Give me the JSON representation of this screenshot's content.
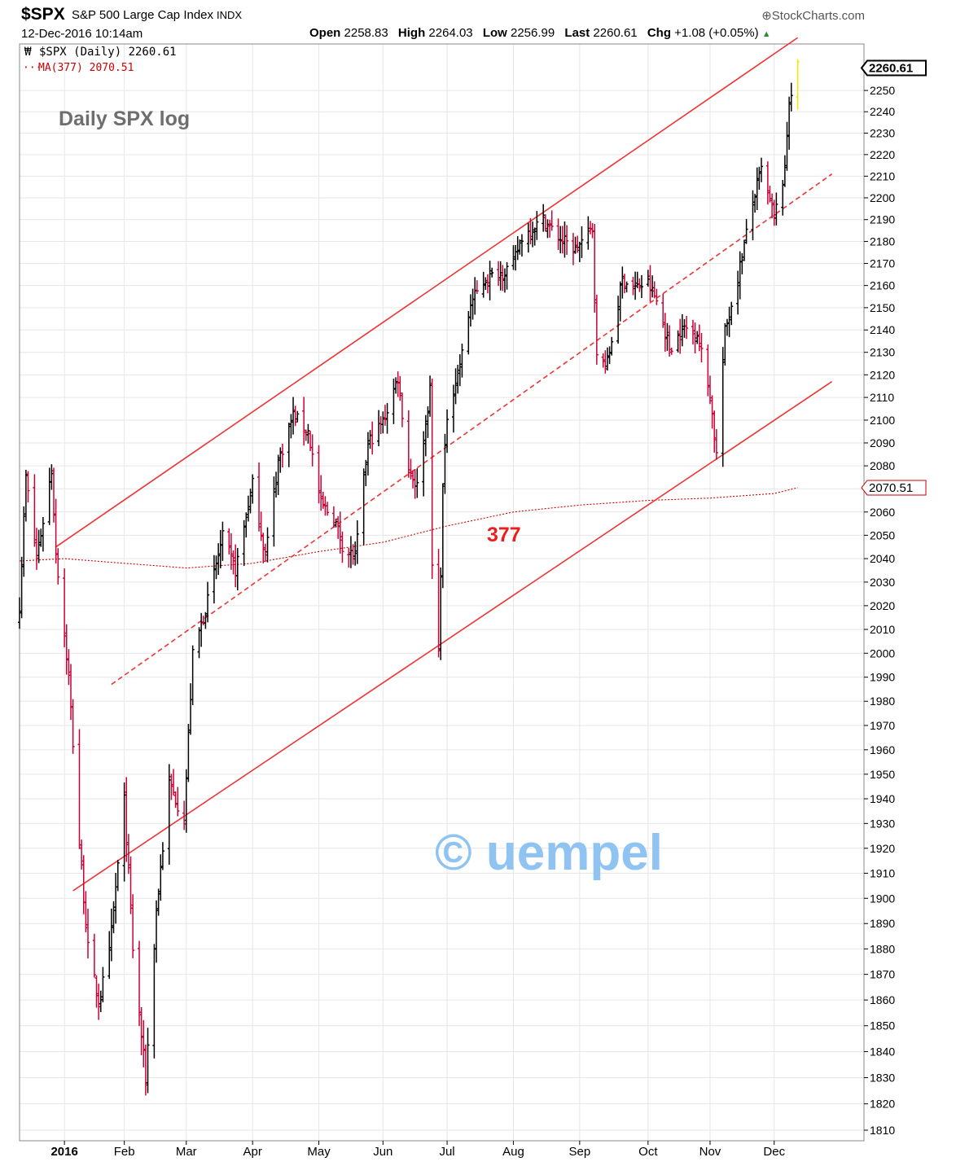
{
  "header": {
    "symbol": "$SPX",
    "name": "S&P 500 Large Cap Index",
    "exchange": "INDX",
    "brand": "StockCharts.com",
    "date": "12-Dec-2016 10:14am",
    "open_label": "Open",
    "open": "2258.83",
    "high_label": "High",
    "high": "2264.03",
    "low_label": "Low",
    "low": "2256.99",
    "last_label": "Last",
    "last": "2260.61",
    "chg_label": "Chg",
    "chg": "+1.08 (+0.05%)"
  },
  "colors": {
    "up": "#000000",
    "down": "#cc0033",
    "trendline": "#ee3333",
    "ma": "#cc0000",
    "watermark": "#8fc4f2",
    "last_bar": "#f2e600"
  },
  "chart_data": {
    "type": "ohlc",
    "title": "Daily SPX log",
    "legend": [
      {
        "label": "$SPX (Daily) 2260.61",
        "color": "#000000"
      },
      {
        "label": "MA(377) 2070.51",
        "color": "#cc0000"
      }
    ],
    "y_scale": "log",
    "ylim": [
      1806,
      2272
    ],
    "y_ticks": [
      1810,
      1820,
      1830,
      1840,
      1850,
      1860,
      1870,
      1880,
      1890,
      1900,
      1910,
      1920,
      1930,
      1940,
      1950,
      1960,
      1970,
      1980,
      1990,
      2000,
      2010,
      2020,
      2030,
      2040,
      2050,
      2060,
      2070,
      2080,
      2090,
      2100,
      2110,
      2120,
      2130,
      2140,
      2150,
      2160,
      2170,
      2180,
      2190,
      2200,
      2210,
      2220,
      2230,
      2240,
      2250
    ],
    "y_tags": [
      "2260.61",
      "2070.51"
    ],
    "x_labels": [
      "2016",
      "Feb",
      "Mar",
      "Apr",
      "May",
      "Jun",
      "Jul",
      "Aug",
      "Sep",
      "Oct",
      "Nov",
      "Dec"
    ],
    "x_label_dates": [
      "2016-01-04",
      "2016-02-01",
      "2016-03-01",
      "2016-04-01",
      "2016-05-02",
      "2016-06-01",
      "2016-07-01",
      "2016-08-01",
      "2016-09-01",
      "2016-10-03",
      "2016-11-01",
      "2016-12-01"
    ],
    "xlim": [
      "2015-12-14",
      "2017-01-12"
    ],
    "close_path": [
      [
        "2015-12-14",
        2020
      ],
      [
        "2015-12-17",
        2075
      ],
      [
        "2015-12-22",
        2040
      ],
      [
        "2015-12-29",
        2078
      ],
      [
        "2015-12-31",
        2043
      ],
      [
        "2016-01-06",
        1990
      ],
      [
        "2016-01-11",
        1922
      ],
      [
        "2016-01-15",
        1880
      ],
      [
        "2016-01-20",
        1859
      ],
      [
        "2016-01-25",
        1878
      ],
      [
        "2016-02-01",
        1939
      ],
      [
        "2016-02-05",
        1880
      ],
      [
        "2016-02-11",
        1829
      ],
      [
        "2016-02-16",
        1895
      ],
      [
        "2016-02-22",
        1946
      ],
      [
        "2016-02-29",
        1932
      ],
      [
        "2016-03-04",
        1999
      ],
      [
        "2016-03-11",
        2022
      ],
      [
        "2016-03-18",
        2049
      ],
      [
        "2016-03-24",
        2035
      ],
      [
        "2016-04-01",
        2072
      ],
      [
        "2016-04-07",
        2041
      ],
      [
        "2016-04-13",
        2082
      ],
      [
        "2016-04-20",
        2102
      ],
      [
        "2016-04-27",
        2095
      ],
      [
        "2016-05-03",
        2063
      ],
      [
        "2016-05-09",
        2058
      ],
      [
        "2016-05-13",
        2046
      ],
      [
        "2016-05-19",
        2040
      ],
      [
        "2016-05-25",
        2090
      ],
      [
        "2016-06-01",
        2099
      ],
      [
        "2016-06-08",
        2119
      ],
      [
        "2016-06-13",
        2079
      ],
      [
        "2016-06-17",
        2071
      ],
      [
        "2016-06-23",
        2113
      ],
      [
        "2016-06-24",
        2037
      ],
      [
        "2016-06-27",
        2000
      ],
      [
        "2016-06-29",
        2070
      ],
      [
        "2016-07-01",
        2102
      ],
      [
        "2016-07-08",
        2129
      ],
      [
        "2016-07-12",
        2152
      ],
      [
        "2016-07-19",
        2163
      ],
      [
        "2016-07-27",
        2166
      ],
      [
        "2016-08-01",
        2170
      ],
      [
        "2016-08-05",
        2182
      ],
      [
        "2016-08-15",
        2190
      ],
      [
        "2016-08-22",
        2182
      ],
      [
        "2016-08-30",
        2176
      ],
      [
        "2016-09-07",
        2186
      ],
      [
        "2016-09-09",
        2127
      ],
      [
        "2016-09-14",
        2125
      ],
      [
        "2016-09-21",
        2163
      ],
      [
        "2016-09-27",
        2159
      ],
      [
        "2016-10-03",
        2161
      ],
      [
        "2016-10-07",
        2153
      ],
      [
        "2016-10-13",
        2132
      ],
      [
        "2016-10-20",
        2141
      ],
      [
        "2016-10-26",
        2139
      ],
      [
        "2016-11-01",
        2111
      ],
      [
        "2016-11-04",
        2085
      ],
      [
        "2016-11-08",
        2139
      ],
      [
        "2016-11-14",
        2164
      ],
      [
        "2016-11-21",
        2198
      ],
      [
        "2016-11-25",
        2213
      ],
      [
        "2016-12-01",
        2191
      ],
      [
        "2016-12-06",
        2212
      ],
      [
        "2016-12-08",
        2246
      ],
      [
        "2016-12-12",
        2260.61
      ]
    ],
    "ma377_path": [
      [
        "2015-12-14",
        2039
      ],
      [
        "2016-01-04",
        2040
      ],
      [
        "2016-02-01",
        2038
      ],
      [
        "2016-03-01",
        2036
      ],
      [
        "2016-04-01",
        2038
      ],
      [
        "2016-05-02",
        2043
      ],
      [
        "2016-06-01",
        2047
      ],
      [
        "2016-07-01",
        2054
      ],
      [
        "2016-08-01",
        2060
      ],
      [
        "2016-09-01",
        2063
      ],
      [
        "2016-10-03",
        2065
      ],
      [
        "2016-11-01",
        2066
      ],
      [
        "2016-12-01",
        2068
      ],
      [
        "2016-12-12",
        2070.51
      ]
    ],
    "trendlines": [
      {
        "name": "upper-channel",
        "style": "solid",
        "from": [
          "2015-12-31",
          2045
        ],
        "to": [
          "2016-12-12",
          2275
        ]
      },
      {
        "name": "middle-channel",
        "style": "dashed",
        "from": [
          "2016-01-26",
          1987
        ],
        "to": [
          "2016-12-28",
          2211
        ]
      },
      {
        "name": "lower-channel",
        "style": "solid",
        "from": [
          "2016-01-08",
          1903
        ],
        "to": [
          "2016-12-28",
          2117
        ]
      }
    ],
    "annotations": {
      "title": "Daily SPX log",
      "ma_label": "377",
      "watermark": "© uempel"
    }
  }
}
